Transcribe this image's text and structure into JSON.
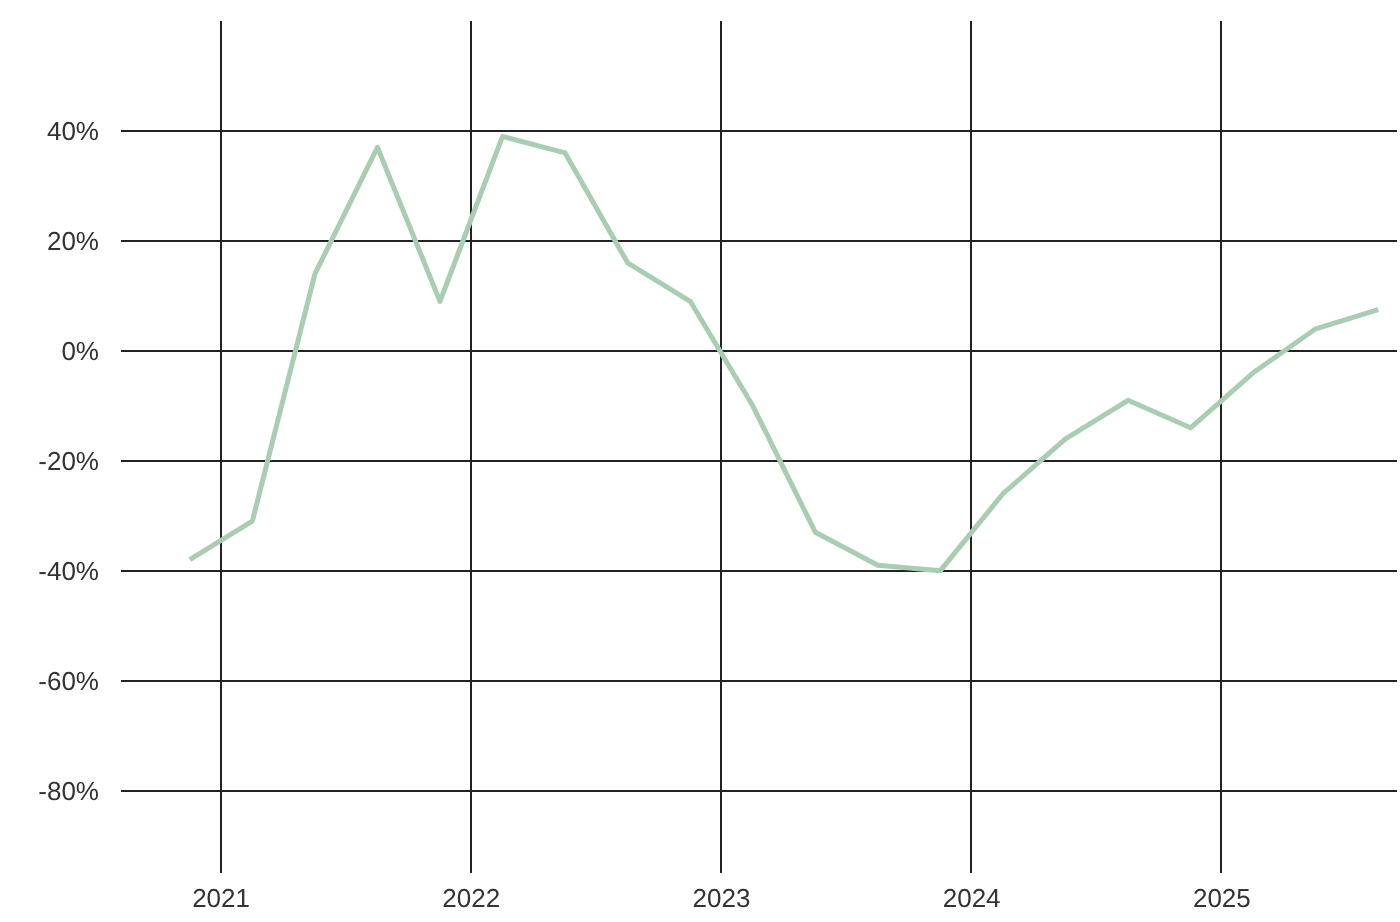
{
  "chart_data": {
    "type": "line",
    "x": [
      2020.875,
      2021.125,
      2021.375,
      2021.625,
      2021.875,
      2022.125,
      2022.375,
      2022.625,
      2022.875,
      2023.125,
      2023.375,
      2023.625,
      2023.875,
      2024.125,
      2024.375,
      2024.625,
      2024.875,
      2025.125,
      2025.375,
      2025.625
    ],
    "series": [
      {
        "color": "#a8cdb1",
        "values": [
          -38,
          -31,
          14,
          37,
          9,
          39,
          36,
          16,
          9,
          -10,
          -33,
          -39,
          -40,
          -26,
          -16,
          -9,
          -14,
          -4,
          4,
          7.5
        ]
      }
    ],
    "xlim": [
      2020.6,
      2025.7
    ],
    "xticks": [
      {
        "value": 2021,
        "label": "2021"
      },
      {
        "value": 2022,
        "label": "2022"
      },
      {
        "value": 2023,
        "label": "2023"
      },
      {
        "value": 2024,
        "label": "2024"
      },
      {
        "value": 2025,
        "label": "2025"
      }
    ],
    "ylim": [
      -95,
      60
    ],
    "yticks": [
      {
        "value": 40,
        "label": "40%"
      },
      {
        "value": 20,
        "label": "20%"
      },
      {
        "value": 0,
        "label": "0%"
      },
      {
        "value": -20,
        "label": "-20%"
      },
      {
        "value": -40,
        "label": "-40%"
      },
      {
        "value": -60,
        "label": "-60%"
      },
      {
        "value": -80,
        "label": "-80%"
      }
    ],
    "grid": true,
    "marker": "none",
    "line_style": "solid"
  }
}
